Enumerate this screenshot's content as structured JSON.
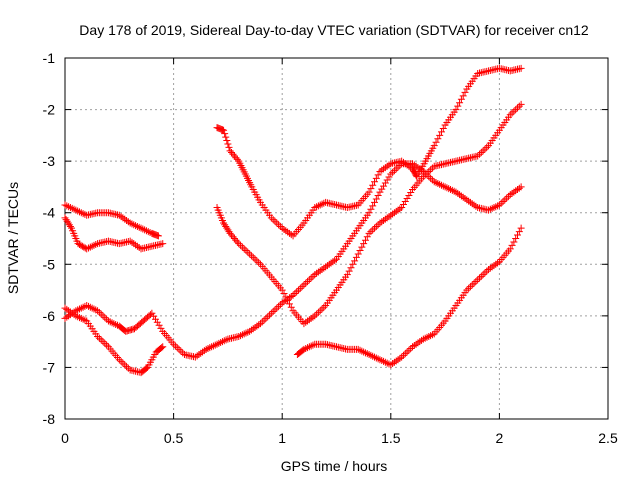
{
  "chart_data": {
    "type": "scatter",
    "title": "Day 178 of 2019, Sidereal Day-to-day VTEC variation (SDTVAR) for receiver cn12",
    "xlabel": "GPS time / hours",
    "ylabel": "SDTVAR / TECUs",
    "xlim": [
      0,
      2.5
    ],
    "ylim": [
      -8,
      -1
    ],
    "xticks": [
      0,
      0.5,
      1,
      1.5,
      2,
      2.5
    ],
    "xtick_labels": [
      "0",
      "0.5",
      "1",
      "1.5",
      "2",
      "2.5"
    ],
    "yticks": [
      -8,
      -7,
      -6,
      -5,
      -4,
      -3,
      -2,
      -1
    ],
    "ytick_labels": [
      "-8",
      "-7",
      "-6",
      "-5",
      "-4",
      "-3",
      "-2",
      "-1"
    ],
    "grid": true,
    "legend": "none",
    "marker": "+",
    "color": "#ff0000",
    "series": [
      {
        "values": [
          [
            0.0,
            -3.85
          ],
          [
            0.05,
            -3.95
          ],
          [
            0.1,
            -4.05
          ],
          [
            0.15,
            -4.0
          ],
          [
            0.2,
            -4.0
          ],
          [
            0.25,
            -4.05
          ],
          [
            0.3,
            -4.2
          ],
          [
            0.35,
            -4.3
          ],
          [
            0.4,
            -4.4
          ],
          [
            0.43,
            -4.45
          ]
        ]
      },
      {
        "values": [
          [
            0.0,
            -4.1
          ],
          [
            0.03,
            -4.3
          ],
          [
            0.06,
            -4.6
          ],
          [
            0.1,
            -4.7
          ],
          [
            0.15,
            -4.6
          ],
          [
            0.2,
            -4.55
          ],
          [
            0.25,
            -4.6
          ],
          [
            0.3,
            -4.55
          ],
          [
            0.35,
            -4.7
          ],
          [
            0.4,
            -4.65
          ],
          [
            0.45,
            -4.6
          ]
        ]
      },
      {
        "values": [
          [
            0.0,
            -6.05
          ],
          [
            0.05,
            -5.9
          ],
          [
            0.1,
            -5.8
          ],
          [
            0.15,
            -5.9
          ],
          [
            0.2,
            -6.1
          ],
          [
            0.25,
            -6.2
          ],
          [
            0.28,
            -6.3
          ],
          [
            0.32,
            -6.25
          ],
          [
            0.36,
            -6.1
          ],
          [
            0.4,
            -5.95
          ],
          [
            0.45,
            -6.3
          ],
          [
            0.5,
            -6.55
          ],
          [
            0.55,
            -6.75
          ],
          [
            0.6,
            -6.8
          ],
          [
            0.65,
            -6.65
          ],
          [
            0.7,
            -6.55
          ],
          [
            0.75,
            -6.45
          ],
          [
            0.8,
            -6.4
          ],
          [
            0.85,
            -6.3
          ],
          [
            0.9,
            -6.15
          ],
          [
            0.95,
            -5.95
          ],
          [
            1.0,
            -5.75
          ],
          [
            1.05,
            -5.6
          ],
          [
            1.1,
            -5.4
          ],
          [
            1.15,
            -5.2
          ],
          [
            1.2,
            -5.05
          ],
          [
            1.25,
            -4.9
          ],
          [
            1.3,
            -4.6
          ],
          [
            1.35,
            -4.3
          ],
          [
            1.4,
            -4.0
          ],
          [
            1.45,
            -3.6
          ],
          [
            1.5,
            -3.25
          ],
          [
            1.55,
            -3.05
          ],
          [
            1.6,
            -3.05
          ],
          [
            1.65,
            -3.2
          ],
          [
            1.7,
            -3.4
          ],
          [
            1.75,
            -3.5
          ],
          [
            1.8,
            -3.6
          ],
          [
            1.85,
            -3.75
          ],
          [
            1.9,
            -3.9
          ],
          [
            1.95,
            -3.95
          ],
          [
            2.0,
            -3.85
          ],
          [
            2.05,
            -3.65
          ],
          [
            2.1,
            -3.5
          ]
        ]
      },
      {
        "values": [
          [
            0.0,
            -5.85
          ],
          [
            0.05,
            -6.0
          ],
          [
            0.1,
            -6.1
          ],
          [
            0.15,
            -6.4
          ],
          [
            0.2,
            -6.6
          ],
          [
            0.25,
            -6.85
          ],
          [
            0.3,
            -7.05
          ],
          [
            0.35,
            -7.1
          ],
          [
            0.38,
            -7.0
          ],
          [
            0.42,
            -6.7
          ],
          [
            0.45,
            -6.6
          ]
        ]
      },
      {
        "values": [
          [
            0.7,
            -2.35
          ],
          [
            0.73,
            -2.4
          ],
          [
            0.76,
            -2.8
          ],
          [
            0.8,
            -3.0
          ],
          [
            0.83,
            -3.25
          ],
          [
            0.86,
            -3.5
          ],
          [
            0.9,
            -3.8
          ],
          [
            0.95,
            -4.1
          ],
          [
            1.0,
            -4.3
          ],
          [
            1.05,
            -4.45
          ],
          [
            1.1,
            -4.2
          ],
          [
            1.15,
            -3.9
          ],
          [
            1.2,
            -3.8
          ],
          [
            1.25,
            -3.85
          ],
          [
            1.3,
            -3.9
          ],
          [
            1.35,
            -3.85
          ],
          [
            1.4,
            -3.6
          ],
          [
            1.45,
            -3.2
          ],
          [
            1.5,
            -3.05
          ],
          [
            1.55,
            -3.0
          ],
          [
            1.6,
            -3.15
          ],
          [
            1.62,
            -3.3
          ],
          [
            1.66,
            -3.0
          ],
          [
            1.7,
            -2.7
          ],
          [
            1.75,
            -2.3
          ],
          [
            1.8,
            -2.0
          ],
          [
            1.85,
            -1.6
          ],
          [
            1.9,
            -1.3
          ],
          [
            1.95,
            -1.25
          ],
          [
            2.0,
            -1.2
          ],
          [
            2.05,
            -1.25
          ],
          [
            2.1,
            -1.2
          ]
        ]
      },
      {
        "values": [
          [
            0.7,
            -3.9
          ],
          [
            0.73,
            -4.2
          ],
          [
            0.76,
            -4.4
          ],
          [
            0.8,
            -4.6
          ],
          [
            0.85,
            -4.8
          ],
          [
            0.9,
            -5.0
          ],
          [
            0.95,
            -5.25
          ],
          [
            1.0,
            -5.5
          ],
          [
            1.05,
            -5.9
          ],
          [
            1.1,
            -6.15
          ],
          [
            1.15,
            -6.0
          ],
          [
            1.2,
            -5.8
          ],
          [
            1.25,
            -5.5
          ],
          [
            1.3,
            -5.2
          ],
          [
            1.35,
            -4.8
          ],
          [
            1.4,
            -4.4
          ],
          [
            1.45,
            -4.2
          ],
          [
            1.5,
            -4.05
          ],
          [
            1.55,
            -3.9
          ],
          [
            1.6,
            -3.55
          ],
          [
            1.65,
            -3.3
          ],
          [
            1.7,
            -3.1
          ],
          [
            1.75,
            -3.05
          ],
          [
            1.8,
            -3.0
          ],
          [
            1.85,
            -2.95
          ],
          [
            1.9,
            -2.9
          ],
          [
            1.95,
            -2.7
          ],
          [
            2.0,
            -2.4
          ],
          [
            2.05,
            -2.1
          ],
          [
            2.1,
            -1.9
          ]
        ]
      },
      {
        "values": [
          [
            1.07,
            -6.75
          ],
          [
            1.1,
            -6.65
          ],
          [
            1.15,
            -6.55
          ],
          [
            1.2,
            -6.55
          ],
          [
            1.25,
            -6.6
          ],
          [
            1.3,
            -6.65
          ],
          [
            1.35,
            -6.65
          ],
          [
            1.4,
            -6.75
          ],
          [
            1.45,
            -6.85
          ],
          [
            1.5,
            -6.95
          ],
          [
            1.55,
            -6.8
          ],
          [
            1.6,
            -6.6
          ],
          [
            1.65,
            -6.45
          ],
          [
            1.7,
            -6.35
          ],
          [
            1.75,
            -6.1
          ],
          [
            1.8,
            -5.8
          ],
          [
            1.85,
            -5.5
          ],
          [
            1.9,
            -5.3
          ],
          [
            1.95,
            -5.1
          ],
          [
            2.0,
            -4.95
          ],
          [
            2.05,
            -4.7
          ],
          [
            2.1,
            -4.3
          ]
        ]
      }
    ]
  }
}
